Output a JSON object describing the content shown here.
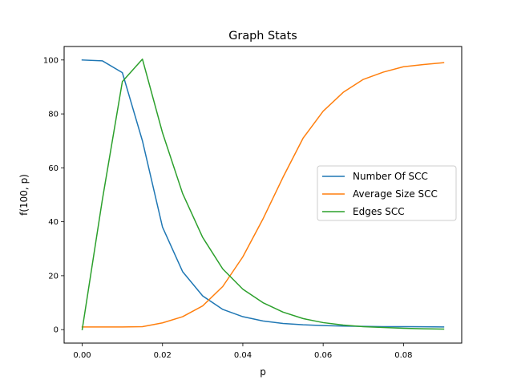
{
  "chart_data": {
    "type": "line",
    "title": "Graph Stats",
    "xlabel": "p",
    "ylabel": "f(100, p)",
    "xlim": [
      -0.0045,
      0.0945
    ],
    "ylim": [
      -5,
      105
    ],
    "xticks": [
      0.0,
      0.02,
      0.04,
      0.06,
      0.08
    ],
    "xtick_labels": [
      "0.00",
      "0.02",
      "0.04",
      "0.06",
      "0.08"
    ],
    "yticks": [
      0,
      20,
      40,
      60,
      80,
      100
    ],
    "ytick_labels": [
      "0",
      "20",
      "40",
      "60",
      "80",
      "100"
    ],
    "grid": false,
    "legend_position": "center-right",
    "x": [
      0.0,
      0.005,
      0.01,
      0.015,
      0.02,
      0.025,
      0.03,
      0.035,
      0.04,
      0.045,
      0.05,
      0.055,
      0.06,
      0.065,
      0.07,
      0.075,
      0.08,
      0.085,
      0.09
    ],
    "series": [
      {
        "name": "Number Of SCC",
        "color": "#1f77b4",
        "values": [
          100,
          99.7,
          95.3,
          70,
          38,
          21.5,
          12.5,
          7.5,
          4.8,
          3.2,
          2.3,
          1.8,
          1.5,
          1.3,
          1.2,
          1.1,
          1.1,
          1.05,
          1.0
        ]
      },
      {
        "name": "Average Size SCC",
        "color": "#ff7f0e",
        "values": [
          1.0,
          1.0,
          1.0,
          1.1,
          2.5,
          4.8,
          8.8,
          16,
          27,
          41,
          56.5,
          71,
          81,
          88,
          92.8,
          95.5,
          97.5,
          98.3,
          99
        ]
      },
      {
        "name": "Edges SCC",
        "color": "#2ca02c",
        "values": [
          0,
          48,
          92,
          100.3,
          73,
          50.5,
          34.2,
          22.5,
          15,
          10,
          6.5,
          4.1,
          2.6,
          1.7,
          1.1,
          0.8,
          0.5,
          0.3,
          0.2
        ]
      }
    ]
  }
}
